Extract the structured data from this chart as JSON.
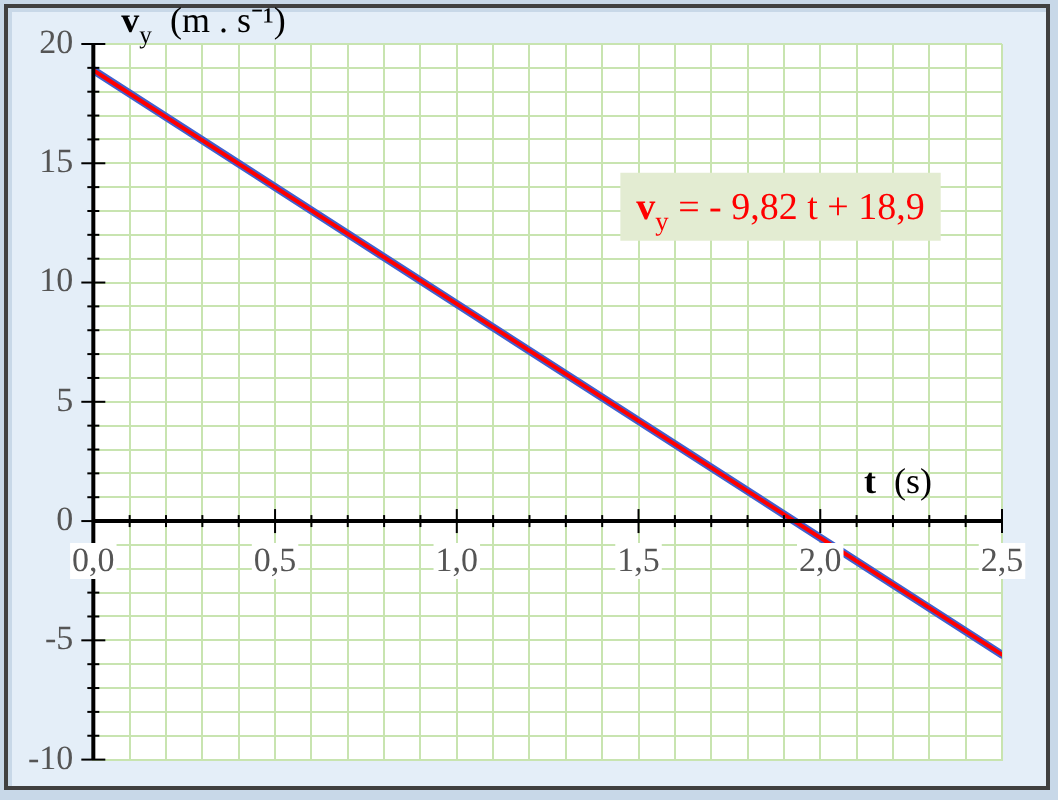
{
  "chart_data": {
    "type": "line",
    "xlabel": "t  (s)",
    "ylabel": "v$_{y}$  (m . s⁻¹)",
    "annotations": [
      "v$_{y}$ = - 9,82 t + 18,9"
    ],
    "x": [
      0,
      2.5
    ],
    "series": [
      {
        "color": "#4060d0",
        "values": [
          18.9,
          -5.6
        ]
      },
      {
        "color": "#ff0000",
        "values": [
          18.9,
          -5.6
        ]
      }
    ],
    "xlim": [
      0,
      2.5
    ],
    "xticks": [
      {
        "value": 0,
        "label": "0,0"
      },
      {
        "value": 0.1,
        "label": null
      },
      {
        "value": 0.2,
        "label": null
      },
      {
        "value": 0.3,
        "label": null
      },
      {
        "value": 0.4,
        "label": null
      },
      {
        "value": 0.5,
        "label": "0,5"
      },
      {
        "value": 0.6,
        "label": null
      },
      {
        "value": 0.7,
        "label": null
      },
      {
        "value": 0.8,
        "label": null
      },
      {
        "value": 0.9,
        "label": null
      },
      {
        "value": 1,
        "label": "1,0"
      },
      {
        "value": 1.1,
        "label": null
      },
      {
        "value": 1.2,
        "label": null
      },
      {
        "value": 1.3,
        "label": null
      },
      {
        "value": 1.4,
        "label": null
      },
      {
        "value": 1.5,
        "label": "1,5"
      },
      {
        "value": 1.6,
        "label": null
      },
      {
        "value": 1.7,
        "label": null
      },
      {
        "value": 1.8,
        "label": null
      },
      {
        "value": 1.9,
        "label": null
      },
      {
        "value": 2,
        "label": "2,0"
      },
      {
        "value": 2.1,
        "label": null
      },
      {
        "value": 2.2,
        "label": null
      },
      {
        "value": 2.3,
        "label": null
      },
      {
        "value": 2.4,
        "label": null
      },
      {
        "value": 2.5,
        "label": "2,5"
      }
    ],
    "ylim": [
      -10,
      20
    ],
    "yticks": [
      -10,
      {
        "value": -9,
        "label": null
      },
      {
        "value": -8,
        "label": null
      },
      {
        "value": -7,
        "label": null
      },
      {
        "value": -6,
        "label": null
      },
      -5,
      {
        "value": -4,
        "label": null
      },
      {
        "value": -3,
        "label": null
      },
      {
        "value": -2,
        "label": null
      },
      {
        "value": -1,
        "label": null
      },
      0,
      {
        "value": 1,
        "label": null
      },
      {
        "value": 2,
        "label": null
      },
      {
        "value": 3,
        "label": null
      },
      {
        "value": 4,
        "label": null
      },
      5,
      {
        "value": 6,
        "label": null
      },
      {
        "value": 7,
        "label": null
      },
      {
        "value": 8,
        "label": null
      },
      {
        "value": 9,
        "label": null
      },
      10,
      {
        "value": 11,
        "label": null
      },
      {
        "value": 12,
        "label": null
      },
      {
        "value": 13,
        "label": null
      },
      {
        "value": 14,
        "label": null
      },
      15,
      {
        "value": 16,
        "label": null
      },
      {
        "value": 17,
        "label": null
      },
      {
        "value": 18,
        "label": null
      },
      {
        "value": 19,
        "label": null
      },
      20
    ],
    "grid": true,
    "legend": false,
    "marker": "none",
    "line_style": "solid"
  }
}
